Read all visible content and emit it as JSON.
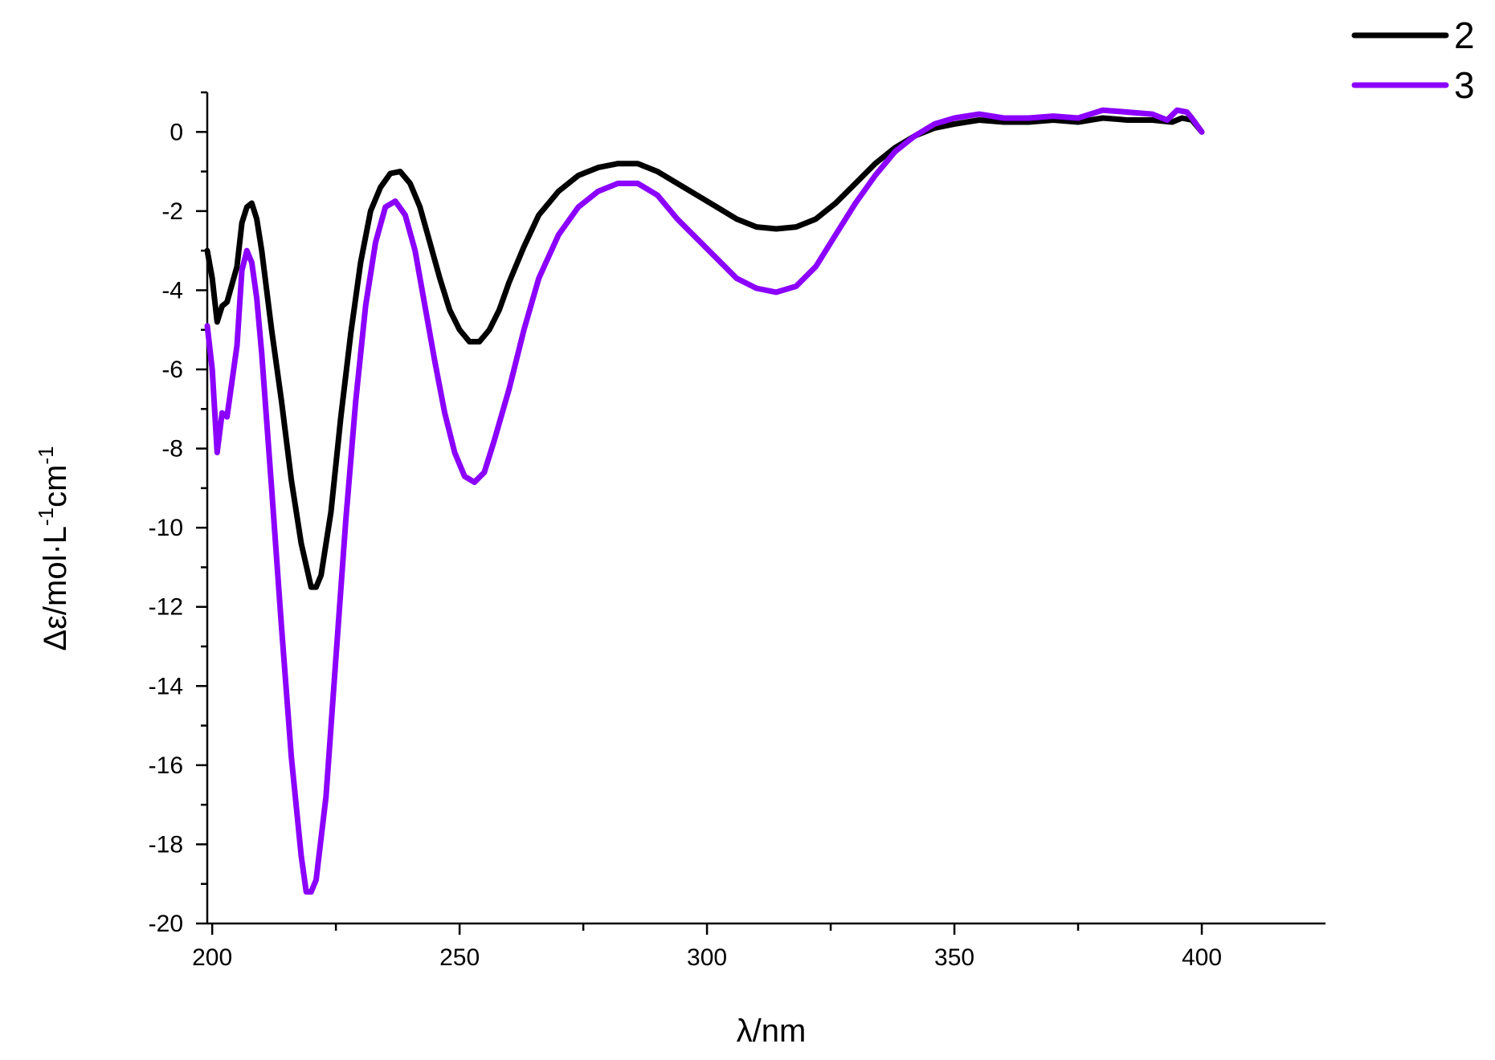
{
  "chart_data": {
    "type": "line",
    "xlabel": "λ/nm",
    "ylabel": "Δε/mol·L",
    "ylabel_sup1": "-1",
    "ylabel_mid": "cm",
    "ylabel_sup2": "-1",
    "xlim": [
      199,
      425
    ],
    "ylim": [
      -20,
      1
    ],
    "x_ticks": [
      200,
      250,
      300,
      350,
      400
    ],
    "x_tick_labels": [
      "200",
      "250",
      "300",
      "350",
      "400"
    ],
    "y_ticks": [
      0,
      -2,
      -4,
      -6,
      -8,
      -10,
      -12,
      -14,
      -16,
      -18,
      -20
    ],
    "y_tick_labels": [
      "0",
      "-2",
      "-4",
      "-6",
      "-8",
      "-10",
      "-12",
      "-14",
      "-16",
      "-18",
      "-20"
    ],
    "grid": false,
    "legend": "top-right",
    "series": [
      {
        "name": "2",
        "color": "#000000",
        "points": [
          [
            199,
            -3.0
          ],
          [
            200,
            -3.7
          ],
          [
            201,
            -4.8
          ],
          [
            202,
            -4.4
          ],
          [
            203,
            -4.3
          ],
          [
            205,
            -3.4
          ],
          [
            206,
            -2.3
          ],
          [
            207,
            -1.9
          ],
          [
            208,
            -1.8
          ],
          [
            209,
            -2.2
          ],
          [
            210,
            -3.0
          ],
          [
            212,
            -5.0
          ],
          [
            214,
            -6.8
          ],
          [
            216,
            -8.8
          ],
          [
            218,
            -10.4
          ],
          [
            220,
            -11.5
          ],
          [
            221,
            -11.5
          ],
          [
            222,
            -11.2
          ],
          [
            224,
            -9.6
          ],
          [
            226,
            -7.2
          ],
          [
            228,
            -5.1
          ],
          [
            230,
            -3.3
          ],
          [
            232,
            -2.0
          ],
          [
            234,
            -1.4
          ],
          [
            236,
            -1.05
          ],
          [
            238,
            -1.0
          ],
          [
            240,
            -1.3
          ],
          [
            242,
            -1.9
          ],
          [
            244,
            -2.8
          ],
          [
            246,
            -3.7
          ],
          [
            248,
            -4.5
          ],
          [
            250,
            -5.0
          ],
          [
            252,
            -5.3
          ],
          [
            254,
            -5.3
          ],
          [
            256,
            -5.0
          ],
          [
            258,
            -4.5
          ],
          [
            260,
            -3.8
          ],
          [
            263,
            -2.9
          ],
          [
            266,
            -2.1
          ],
          [
            270,
            -1.5
          ],
          [
            274,
            -1.1
          ],
          [
            278,
            -0.9
          ],
          [
            282,
            -0.8
          ],
          [
            286,
            -0.8
          ],
          [
            290,
            -1.0
          ],
          [
            294,
            -1.3
          ],
          [
            298,
            -1.6
          ],
          [
            302,
            -1.9
          ],
          [
            306,
            -2.2
          ],
          [
            310,
            -2.4
          ],
          [
            314,
            -2.45
          ],
          [
            318,
            -2.4
          ],
          [
            322,
            -2.2
          ],
          [
            326,
            -1.8
          ],
          [
            330,
            -1.3
          ],
          [
            334,
            -0.8
          ],
          [
            338,
            -0.4
          ],
          [
            342,
            -0.1
          ],
          [
            346,
            0.1
          ],
          [
            350,
            0.2
          ],
          [
            355,
            0.3
          ],
          [
            360,
            0.25
          ],
          [
            365,
            0.25
          ],
          [
            370,
            0.3
          ],
          [
            375,
            0.25
          ],
          [
            380,
            0.35
          ],
          [
            385,
            0.3
          ],
          [
            390,
            0.3
          ],
          [
            394,
            0.25
          ],
          [
            396,
            0.35
          ],
          [
            398,
            0.3
          ],
          [
            400,
            0.0
          ]
        ]
      },
      {
        "name": "3",
        "color": "#8b00ff",
        "points": [
          [
            199,
            -4.9
          ],
          [
            200,
            -6.0
          ],
          [
            201,
            -8.1
          ],
          [
            202,
            -7.1
          ],
          [
            203,
            -7.2
          ],
          [
            205,
            -5.4
          ],
          [
            206,
            -3.5
          ],
          [
            207,
            -3.0
          ],
          [
            208,
            -3.3
          ],
          [
            209,
            -4.2
          ],
          [
            210,
            -5.6
          ],
          [
            212,
            -9.0
          ],
          [
            214,
            -12.5
          ],
          [
            216,
            -15.8
          ],
          [
            218,
            -18.3
          ],
          [
            219,
            -19.2
          ],
          [
            220,
            -19.2
          ],
          [
            221,
            -18.9
          ],
          [
            223,
            -16.8
          ],
          [
            225,
            -13.3
          ],
          [
            227,
            -9.8
          ],
          [
            229,
            -6.8
          ],
          [
            231,
            -4.4
          ],
          [
            233,
            -2.8
          ],
          [
            235,
            -1.9
          ],
          [
            237,
            -1.75
          ],
          [
            239,
            -2.1
          ],
          [
            241,
            -3.0
          ],
          [
            243,
            -4.4
          ],
          [
            245,
            -5.8
          ],
          [
            247,
            -7.1
          ],
          [
            249,
            -8.1
          ],
          [
            251,
            -8.7
          ],
          [
            253,
            -8.85
          ],
          [
            255,
            -8.6
          ],
          [
            257,
            -7.8
          ],
          [
            260,
            -6.5
          ],
          [
            263,
            -5.0
          ],
          [
            266,
            -3.7
          ],
          [
            270,
            -2.6
          ],
          [
            274,
            -1.9
          ],
          [
            278,
            -1.5
          ],
          [
            282,
            -1.3
          ],
          [
            286,
            -1.3
          ],
          [
            290,
            -1.6
          ],
          [
            294,
            -2.2
          ],
          [
            298,
            -2.7
          ],
          [
            302,
            -3.2
          ],
          [
            306,
            -3.7
          ],
          [
            310,
            -3.95
          ],
          [
            314,
            -4.05
          ],
          [
            318,
            -3.9
          ],
          [
            322,
            -3.4
          ],
          [
            326,
            -2.6
          ],
          [
            330,
            -1.8
          ],
          [
            334,
            -1.1
          ],
          [
            338,
            -0.5
          ],
          [
            342,
            -0.1
          ],
          [
            346,
            0.2
          ],
          [
            350,
            0.35
          ],
          [
            355,
            0.45
          ],
          [
            360,
            0.35
          ],
          [
            365,
            0.35
          ],
          [
            370,
            0.4
          ],
          [
            375,
            0.35
          ],
          [
            380,
            0.55
          ],
          [
            385,
            0.5
          ],
          [
            390,
            0.45
          ],
          [
            393,
            0.3
          ],
          [
            395,
            0.55
          ],
          [
            397,
            0.5
          ],
          [
            398,
            0.35
          ],
          [
            400,
            0.0
          ]
        ]
      }
    ]
  }
}
